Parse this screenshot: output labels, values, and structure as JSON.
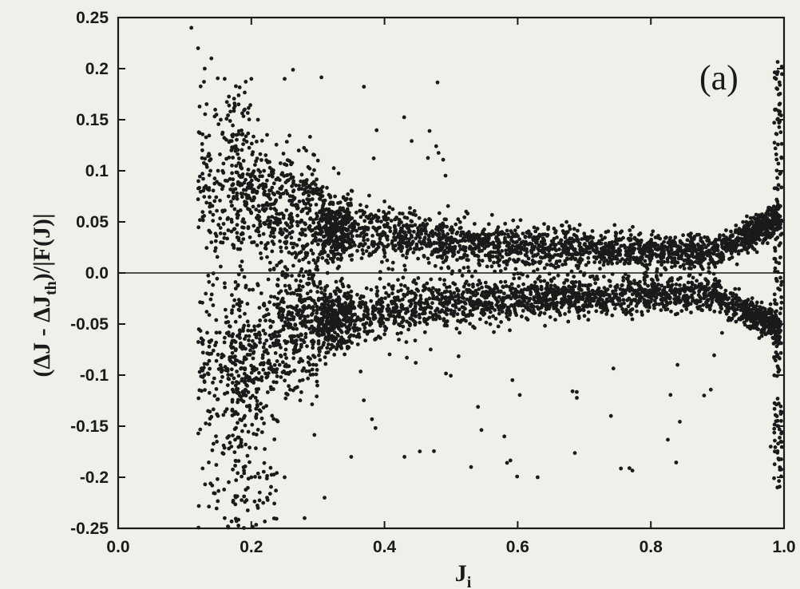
{
  "chart_data": {
    "type": "scatter",
    "title": "",
    "panel_label": "(a)",
    "xlabel_main": "J",
    "xlabel_sub": "i",
    "ylabel_prefix": "(ΔJ - ΔJ",
    "ylabel_sub": "th",
    "ylabel_suffix": ")/|F(J)|",
    "xlim": [
      0.0,
      1.0
    ],
    "ylim": [
      -0.25,
      0.25
    ],
    "x_ticks": [
      0.0,
      0.2,
      0.4,
      0.6,
      0.8,
      1.0
    ],
    "x_tick_labels": [
      "0.0",
      "0.2",
      "0.4",
      "0.6",
      "0.8",
      "1.0"
    ],
    "y_ticks": [
      0.25,
      0.2,
      0.15,
      0.1,
      0.05,
      0.0,
      -0.05,
      -0.1,
      -0.15,
      -0.2,
      -0.25
    ],
    "y_tick_labels": [
      "0.25",
      "0.2",
      "0.15",
      "0.1",
      "0.05",
      "0.0",
      "-0.05",
      "-0.1",
      "-0.15",
      "-0.2",
      "-0.25"
    ],
    "reference_line_y": 0.0,
    "marker_color": "#1a1a1a",
    "point_count_approx": 6000,
    "series": [
      {
        "values": [
          [
            0.11,
            0.24
          ],
          [
            0.12,
            0.22
          ],
          [
            0.14,
            0.21
          ],
          [
            0.13,
            0.2
          ],
          [
            0.16,
            0.19
          ],
          [
            0.2,
            0.19
          ],
          [
            0.25,
            0.19
          ],
          [
            0.19,
            0.16
          ],
          [
            0.21,
            0.15
          ],
          [
            0.17,
            0.12
          ],
          [
            0.15,
            0.1
          ],
          [
            0.22,
            0.08
          ],
          [
            0.18,
            0.06
          ],
          [
            0.24,
            0.05
          ],
          [
            0.14,
            0.03
          ],
          [
            0.16,
            -0.01
          ],
          [
            0.19,
            -0.04
          ],
          [
            0.15,
            -0.08
          ],
          [
            0.17,
            -0.1
          ],
          [
            0.19,
            -0.14
          ],
          [
            0.17,
            -0.17
          ],
          [
            0.2,
            -0.2
          ],
          [
            0.21,
            -0.23
          ],
          [
            0.16,
            -0.24
          ],
          [
            0.25,
            -0.2
          ],
          [
            0.28,
            -0.24
          ],
          [
            0.31,
            -0.22
          ],
          [
            0.35,
            -0.18
          ],
          [
            0.3,
            0.11
          ],
          [
            0.4,
            0.07
          ],
          [
            0.5,
            0.03
          ],
          [
            0.6,
            0.025
          ],
          [
            0.7,
            0.02
          ],
          [
            0.8,
            0.02
          ],
          [
            0.9,
            0.025
          ],
          [
            0.95,
            0.03
          ],
          [
            0.99,
            0.07
          ],
          [
            0.99,
            0.18
          ],
          [
            0.99,
            -0.08
          ],
          [
            0.99,
            -0.21
          ],
          [
            0.98,
            -0.17
          ],
          [
            0.4,
            -0.06
          ],
          [
            0.5,
            -0.04
          ],
          [
            0.6,
            -0.03
          ],
          [
            0.7,
            -0.02
          ],
          [
            0.8,
            -0.02
          ],
          [
            0.9,
            -0.02
          ],
          [
            0.95,
            -0.03
          ],
          [
            0.43,
            -0.18
          ],
          [
            0.53,
            -0.19
          ],
          [
            0.63,
            -0.2
          ],
          [
            0.58,
            -0.16
          ],
          [
            0.74,
            -0.14
          ],
          [
            0.88,
            -0.12
          ],
          [
            0.84,
            -0.09
          ]
        ]
      }
    ]
  }
}
